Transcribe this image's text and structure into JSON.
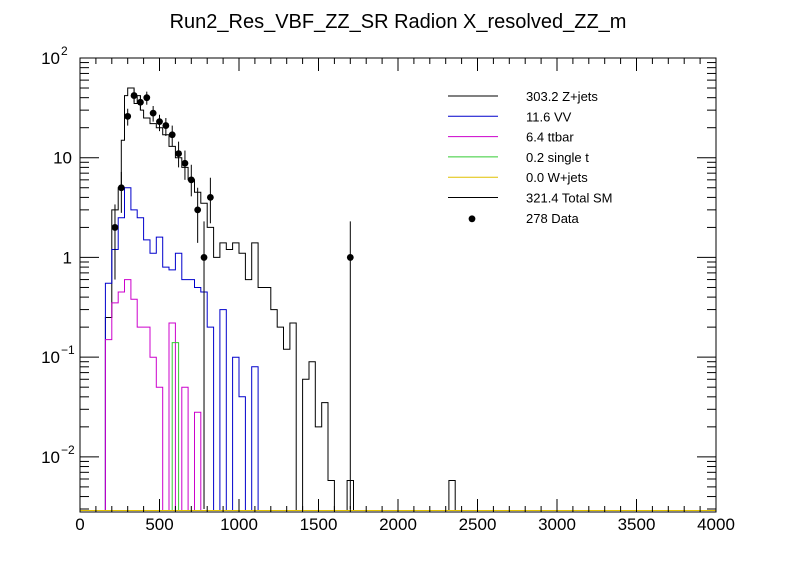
{
  "chart_data": {
    "type": "histogram",
    "title": "Run2_Res_VBF_ZZ_SR Radion  X_resolved_ZZ_m",
    "xlabel": "",
    "ylabel": "",
    "xlim": [
      0,
      4000
    ],
    "ylim": [
      0.0028,
      100
    ],
    "yscale": "log",
    "x_ticks": [
      "0",
      "500",
      "1000",
      "1500",
      "2000",
      "2500",
      "3000",
      "3500",
      "4000"
    ],
    "x_tick_values": [
      0,
      500,
      1000,
      1500,
      2000,
      2500,
      3000,
      3500,
      4000
    ],
    "y_ticks": [
      {
        "value": 100,
        "base": "10",
        "exp": "2"
      },
      {
        "value": 10,
        "base": "10",
        "exp": ""
      },
      {
        "value": 1,
        "base": "1",
        "exp": ""
      },
      {
        "value": 0.1,
        "base": "10",
        "exp": "−1"
      },
      {
        "value": 0.01,
        "base": "10",
        "exp": "−2"
      }
    ],
    "bin_width": 40,
    "series": [
      {
        "name": "Z+jets",
        "color": "#000000",
        "kind": "step",
        "points": [
          [
            160,
            0.0029
          ],
          [
            160,
            0.25
          ],
          [
            200,
            0.25
          ],
          [
            200,
            3
          ],
          [
            240,
            3
          ],
          [
            240,
            5
          ],
          [
            260,
            5
          ],
          [
            260,
            15
          ],
          [
            280,
            15
          ],
          [
            280,
            42
          ],
          [
            300,
            42
          ],
          [
            300,
            50
          ],
          [
            340,
            50
          ],
          [
            340,
            35
          ],
          [
            360,
            35
          ],
          [
            360,
            42
          ],
          [
            380,
            42
          ],
          [
            380,
            30
          ],
          [
            400,
            30
          ],
          [
            400,
            25
          ],
          [
            440,
            25
          ],
          [
            440,
            22
          ],
          [
            480,
            22
          ],
          [
            480,
            20
          ],
          [
            520,
            20
          ],
          [
            520,
            17
          ],
          [
            560,
            17
          ],
          [
            560,
            13
          ],
          [
            600,
            13
          ],
          [
            600,
            10
          ],
          [
            640,
            10
          ],
          [
            640,
            8
          ],
          [
            680,
            8
          ],
          [
            680,
            6
          ],
          [
            720,
            6
          ],
          [
            720,
            4.5
          ],
          [
            760,
            4.5
          ],
          [
            760,
            3.5
          ],
          [
            800,
            3.5
          ],
          [
            800,
            2
          ],
          [
            840,
            2
          ],
          [
            840,
            1
          ],
          [
            880,
            1
          ],
          [
            880,
            1.4
          ],
          [
            920,
            1.4
          ],
          [
            920,
            1.2
          ],
          [
            960,
            1.2
          ],
          [
            960,
            1.4
          ],
          [
            1000,
            1.4
          ],
          [
            1000,
            1.1
          ],
          [
            1040,
            1.1
          ],
          [
            1040,
            0.6
          ],
          [
            1080,
            0.6
          ],
          [
            1080,
            1.4
          ],
          [
            1120,
            1.4
          ],
          [
            1120,
            0.5
          ],
          [
            1160,
            0.5
          ],
          [
            1160,
            0.5
          ],
          [
            1200,
            0.5
          ],
          [
            1200,
            0.3
          ],
          [
            1240,
            0.3
          ],
          [
            1240,
            0.2
          ],
          [
            1280,
            0.2
          ],
          [
            1280,
            0.12
          ],
          [
            1320,
            0.12
          ],
          [
            1320,
            0.22
          ],
          [
            1360,
            0.22
          ],
          [
            1360,
            0.0029
          ],
          [
            1400,
            0.0029
          ],
          [
            1400,
            0.06
          ],
          [
            1440,
            0.06
          ],
          [
            1440,
            0.09
          ],
          [
            1480,
            0.09
          ],
          [
            1480,
            0.02
          ],
          [
            1520,
            0.02
          ],
          [
            1520,
            0.035
          ],
          [
            1560,
            0.035
          ],
          [
            1560,
            0.0058
          ],
          [
            1600,
            0.0058
          ],
          [
            1600,
            0.0029
          ],
          [
            1680,
            0.0029
          ],
          [
            1680,
            0.0058
          ],
          [
            1720,
            0.0058
          ],
          [
            1720,
            0.0029
          ],
          [
            2320,
            0.0029
          ],
          [
            2320,
            0.0058
          ],
          [
            2360,
            0.0058
          ],
          [
            2360,
            0.0029
          ]
        ]
      },
      {
        "name": "VV",
        "color": "#0000cc",
        "kind": "step",
        "points": [
          [
            160,
            0.0029
          ],
          [
            160,
            0.55
          ],
          [
            200,
            0.55
          ],
          [
            200,
            1.2
          ],
          [
            240,
            1.2
          ],
          [
            240,
            2.5
          ],
          [
            280,
            2.5
          ],
          [
            280,
            5
          ],
          [
            320,
            5
          ],
          [
            320,
            3
          ],
          [
            360,
            3
          ],
          [
            360,
            2.5
          ],
          [
            400,
            2.5
          ],
          [
            400,
            1.5
          ],
          [
            440,
            1.5
          ],
          [
            440,
            1.1
          ],
          [
            480,
            1.1
          ],
          [
            480,
            1.6
          ],
          [
            520,
            1.6
          ],
          [
            520,
            0.8
          ],
          [
            560,
            0.8
          ],
          [
            560,
            0.75
          ],
          [
            600,
            0.75
          ],
          [
            600,
            1.1
          ],
          [
            640,
            1.1
          ],
          [
            640,
            0.6
          ],
          [
            680,
            0.6
          ],
          [
            680,
            0.6
          ],
          [
            720,
            0.6
          ],
          [
            720,
            0.5
          ],
          [
            760,
            0.5
          ],
          [
            760,
            0.45
          ],
          [
            800,
            0.45
          ],
          [
            800,
            0.2
          ],
          [
            840,
            0.2
          ],
          [
            840,
            0.0029
          ],
          [
            880,
            0.0029
          ],
          [
            880,
            0.3
          ],
          [
            920,
            0.3
          ],
          [
            920,
            0.0029
          ],
          [
            960,
            0.0029
          ],
          [
            960,
            0.1
          ],
          [
            1000,
            0.1
          ],
          [
            1000,
            0.04
          ],
          [
            1040,
            0.04
          ],
          [
            1040,
            0.0029
          ],
          [
            1080,
            0.0029
          ],
          [
            1080,
            0.08
          ],
          [
            1120,
            0.08
          ],
          [
            1120,
            0.0029
          ]
        ]
      },
      {
        "name": "ttbar",
        "color": "#cc00cc",
        "kind": "step",
        "points": [
          [
            160,
            0.0029
          ],
          [
            160,
            0.15
          ],
          [
            200,
            0.15
          ],
          [
            200,
            0.35
          ],
          [
            240,
            0.35
          ],
          [
            240,
            0.45
          ],
          [
            280,
            0.45
          ],
          [
            280,
            0.6
          ],
          [
            320,
            0.6
          ],
          [
            320,
            0.38
          ],
          [
            360,
            0.38
          ],
          [
            360,
            0.2
          ],
          [
            400,
            0.2
          ],
          [
            400,
            0.2
          ],
          [
            440,
            0.2
          ],
          [
            440,
            0.1
          ],
          [
            480,
            0.1
          ],
          [
            480,
            0.05
          ],
          [
            520,
            0.05
          ],
          [
            520,
            0.0029
          ],
          [
            560,
            0.0029
          ],
          [
            560,
            0.22
          ],
          [
            600,
            0.22
          ],
          [
            600,
            0.0029
          ],
          [
            640,
            0.0029
          ],
          [
            640,
            0.05
          ],
          [
            680,
            0.05
          ],
          [
            680,
            0.0029
          ],
          [
            720,
            0.0029
          ],
          [
            720,
            0.028
          ],
          [
            760,
            0.028
          ],
          [
            760,
            0.0029
          ]
        ]
      },
      {
        "name": "single t",
        "color": "#33cc33",
        "kind": "step",
        "points": [
          [
            580,
            0.0029
          ],
          [
            580,
            0.14
          ],
          [
            620,
            0.14
          ],
          [
            620,
            0.0029
          ]
        ]
      },
      {
        "name": "W+jets",
        "color": "#e0c000",
        "kind": "step",
        "points": [
          [
            0,
            0.0029
          ],
          [
            4000,
            0.0029
          ]
        ]
      },
      {
        "name": "Total SM",
        "color": "#000000",
        "kind": "step",
        "points": []
      },
      {
        "name": "Data",
        "color": "#000000",
        "kind": "points",
        "points": [
          [
            220,
            2
          ],
          [
            260,
            5
          ],
          [
            300,
            26
          ],
          [
            340,
            42
          ],
          [
            380,
            36
          ],
          [
            420,
            40
          ],
          [
            460,
            28
          ],
          [
            500,
            23
          ],
          [
            540,
            21
          ],
          [
            580,
            17
          ],
          [
            620,
            11
          ],
          [
            660,
            8.8
          ],
          [
            700,
            6
          ],
          [
            740,
            3
          ],
          [
            780,
            1
          ],
          [
            820,
            4
          ],
          [
            1700,
            1
          ]
        ],
        "err_up": [
          3.4,
          7.2,
          31,
          49,
          42,
          46,
          33,
          27,
          25,
          21,
          14.5,
          11.8,
          8.5,
          5,
          2.3,
          6.3,
          2.3
        ],
        "err_down": [
          0.6,
          2.8,
          21,
          36,
          30,
          34,
          23,
          18.5,
          16.5,
          13,
          8,
          6,
          4.1,
          1.4,
          0.003,
          2.2,
          0.003
        ]
      }
    ],
    "legend": {
      "position": "top-right",
      "entries": [
        {
          "text": "303.2 Z+jets",
          "color": "#000000",
          "kind": "line"
        },
        {
          "text": "11.6 VV",
          "color": "#0000cc",
          "kind": "line"
        },
        {
          "text": "6.4 ttbar",
          "color": "#cc00cc",
          "kind": "line"
        },
        {
          "text": "0.2 single t",
          "color": "#33cc33",
          "kind": "line"
        },
        {
          "text": "0.0 W+jets",
          "color": "#e0c000",
          "kind": "line"
        },
        {
          "text": "321.4 Total SM",
          "color": "#000000",
          "kind": "line"
        },
        {
          "text": "278 Data",
          "color": "#000000",
          "kind": "marker"
        }
      ]
    }
  }
}
